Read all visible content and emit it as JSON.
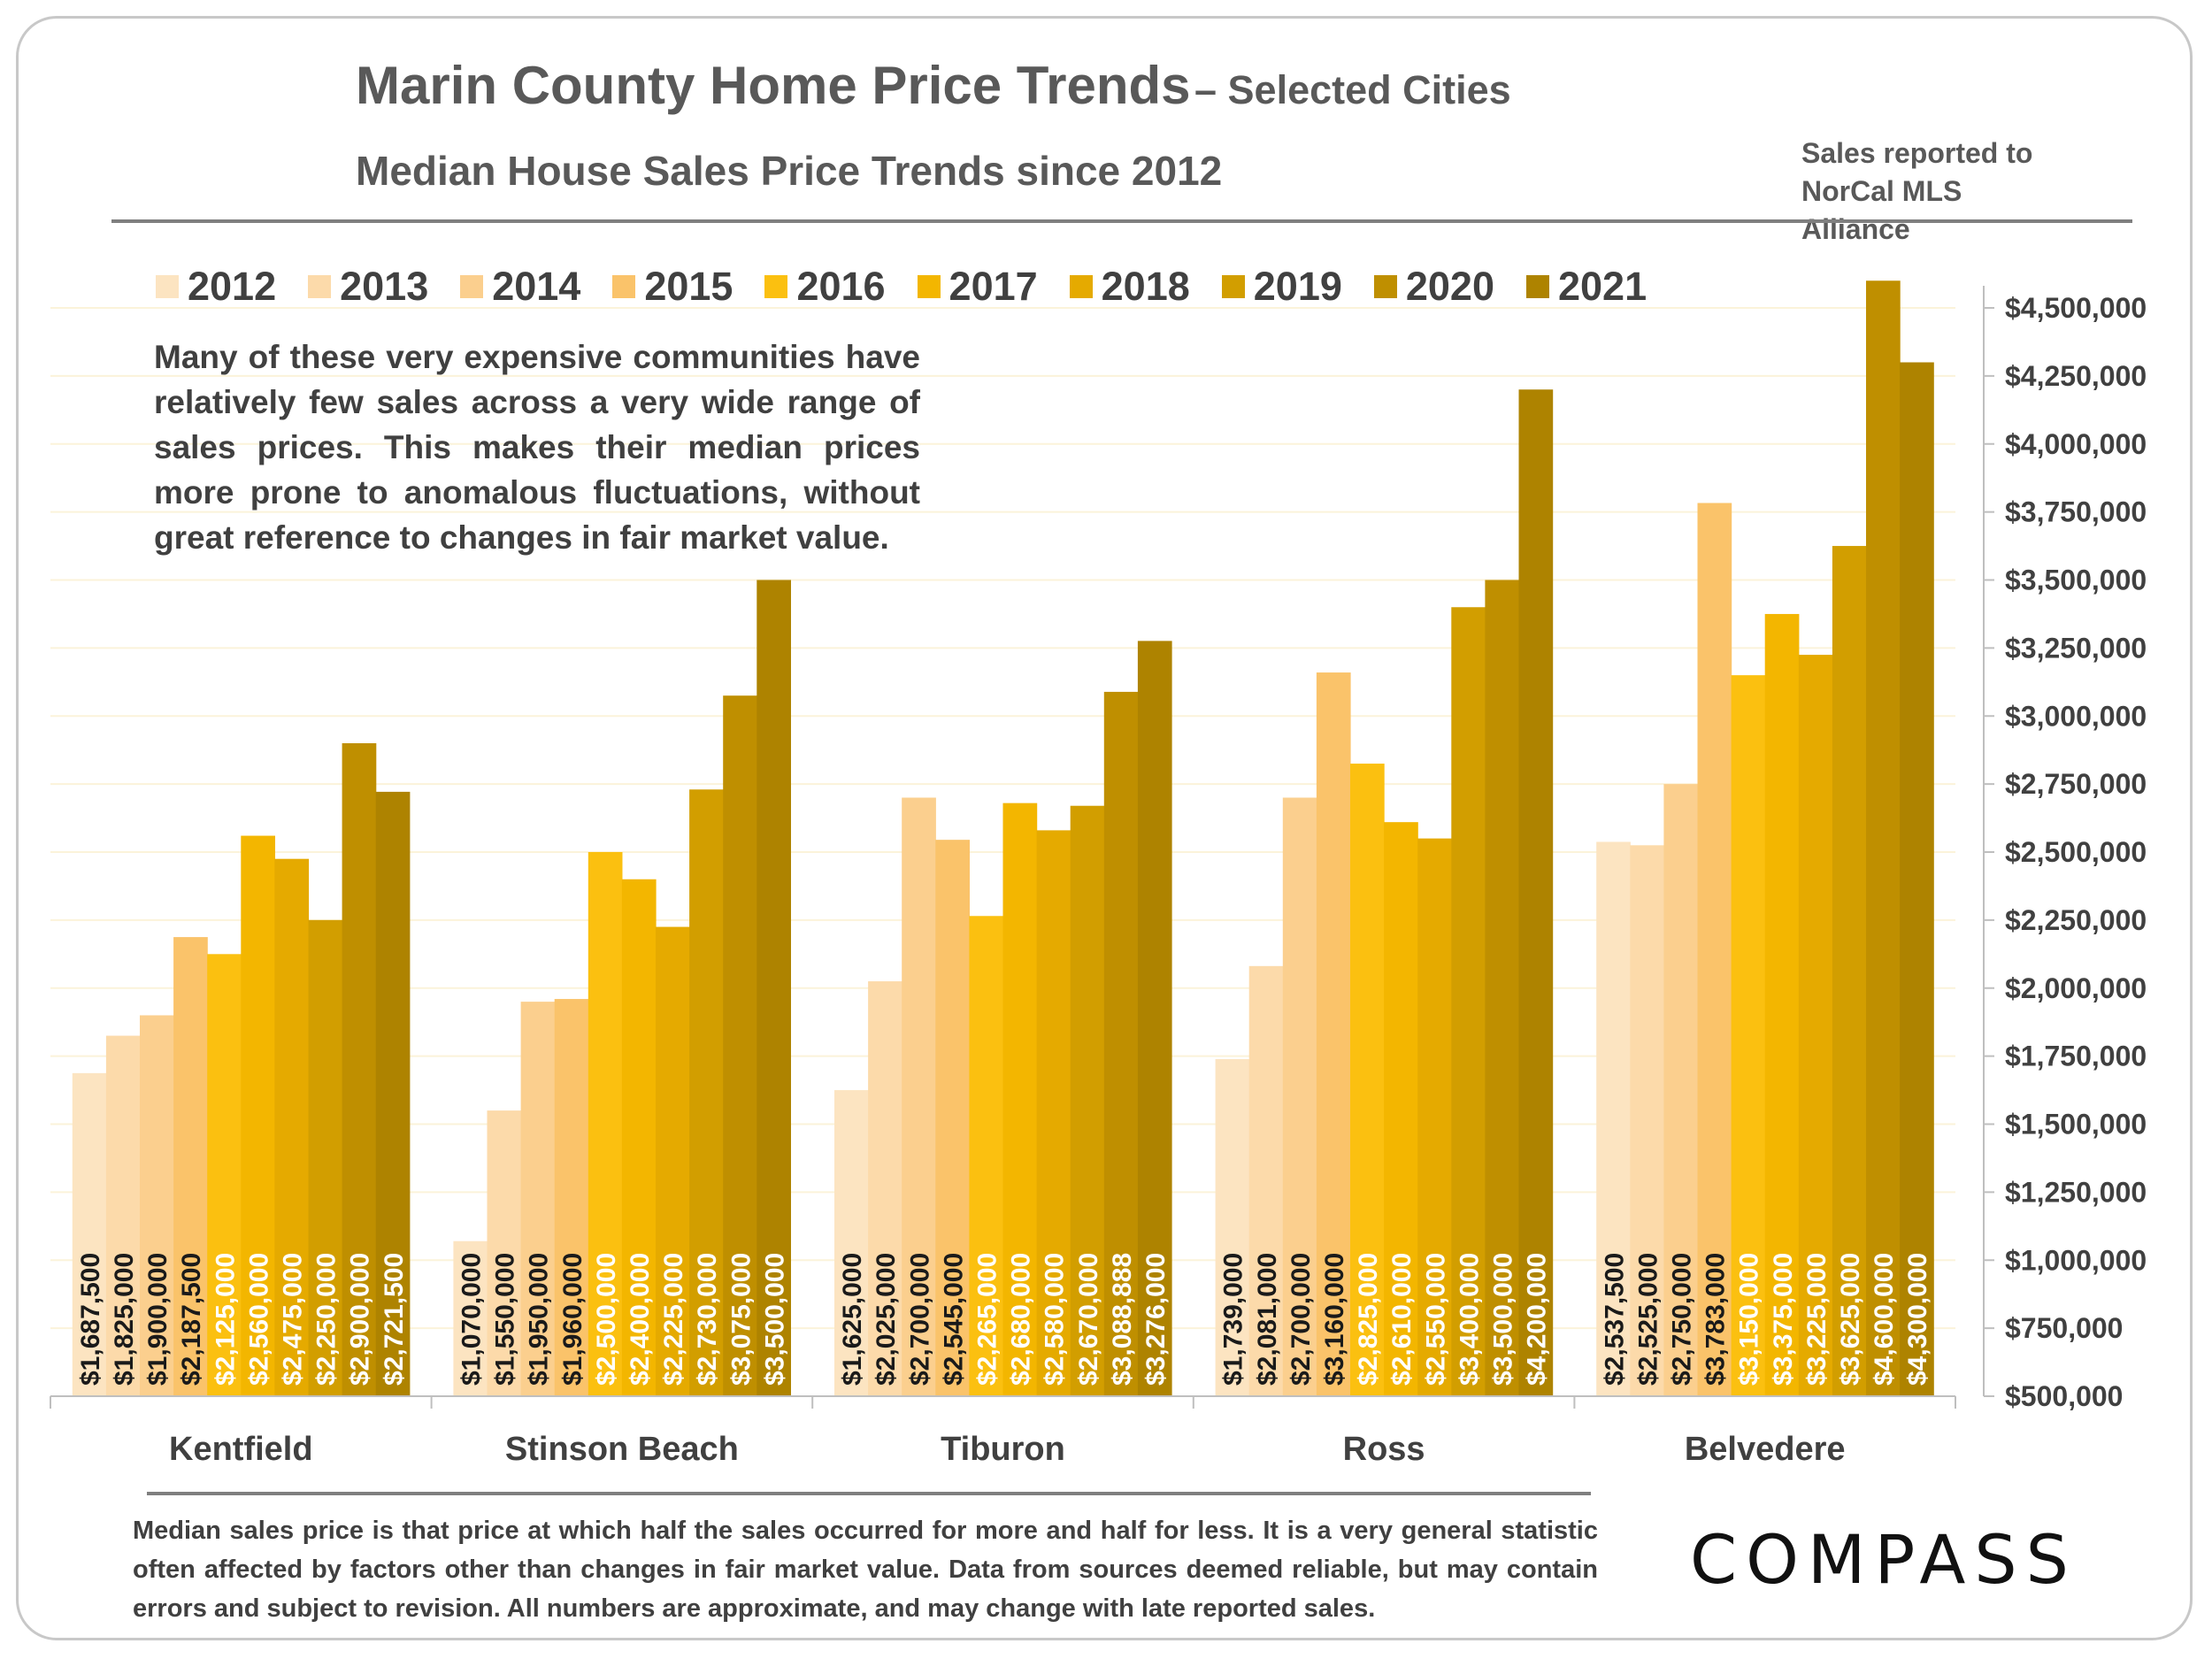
{
  "header": {
    "title": "Marin County Home Price Trends",
    "title_suffix": "– Selected Cities",
    "subtitle": "Median House Sales Price Trends since 2012",
    "source_line1": "Sales reported to",
    "source_line2": "NorCal MLS Alliance"
  },
  "annotation": "Many of these very expensive communities have relatively few sales across a very wide range of sales prices. This makes their median prices more prone to anomalous fluctuations, without great reference to changes in fair market value.",
  "footnote": "Median sales price is that price at which half the sales occurred for more and half for less. It is a very general statistic often affected by factors other than changes in fair market value. Data from sources deemed reliable, but may contain errors and subject to revision. All numbers are approximate, and may change with late reported sales.",
  "logo": "COMPASS",
  "chart_data": {
    "type": "bar",
    "categories": [
      "Kentfield",
      "Stinson Beach",
      "Tiburon",
      "Ross",
      "Belvedere"
    ],
    "series": [
      {
        "name": "2012",
        "color": "#FCE4C1",
        "values": [
          1687500,
          1070000,
          1625000,
          1739000,
          2537500
        ],
        "labels": [
          "$1,687,500",
          "$1,070,000",
          "$1,625,000",
          "$1,739,000",
          "$2,537,500"
        ]
      },
      {
        "name": "2013",
        "color": "#FCDAAA",
        "values": [
          1825000,
          1550000,
          2025000,
          2081000,
          2525000
        ],
        "labels": [
          "$1,825,000",
          "$1,550,000",
          "$2,025,000",
          "$2,081,000",
          "$2,525,000"
        ]
      },
      {
        "name": "2014",
        "color": "#FBCF8E",
        "values": [
          1900000,
          1950000,
          2700000,
          2700000,
          2750000
        ],
        "labels": [
          "$1,900,000",
          "$1,950,000",
          "$2,700,000",
          "$2,700,000",
          "$2,750,000"
        ]
      },
      {
        "name": "2015",
        "color": "#FAC36A",
        "values": [
          2187500,
          1960000,
          2545000,
          3160000,
          3783000
        ],
        "labels": [
          "$2,187,500",
          "$1,960,000",
          "$2,545,000",
          "$3,160,000",
          "$3,783,000"
        ]
      },
      {
        "name": "2016",
        "color": "#FBC010",
        "values": [
          2125000,
          2500000,
          2265000,
          2825000,
          3150000
        ],
        "labels": [
          "$2,125,000",
          "$2,500,000",
          "$2,265,000",
          "$2,825,000",
          "$3,150,000"
        ]
      },
      {
        "name": "2017",
        "color": "#F3B600",
        "values": [
          2560000,
          2400000,
          2680000,
          2610000,
          3375000
        ],
        "labels": [
          "$2,560,000",
          "$2,400,000",
          "$2,680,000",
          "$2,610,000",
          "$3,375,000"
        ]
      },
      {
        "name": "2018",
        "color": "#E5AA00",
        "values": [
          2475000,
          2225000,
          2580000,
          2550000,
          3225000
        ],
        "labels": [
          "$2,475,000",
          "$2,225,000",
          "$2,580,000",
          "$2,550,000",
          "$3,225,000"
        ]
      },
      {
        "name": "2019",
        "color": "#D29E00",
        "values": [
          2250000,
          2730000,
          2670000,
          3400000,
          3625000
        ],
        "labels": [
          "$2,250,000",
          "$2,730,000",
          "$2,670,000",
          "$3,400,000",
          "$3,625,000"
        ]
      },
      {
        "name": "2020",
        "color": "#BF8F00",
        "values": [
          2900000,
          3075000,
          3088888,
          3500000,
          4600000
        ],
        "labels": [
          "$2,900,000",
          "$3,075,000",
          "$3,088,888",
          "$3,500,000",
          "$4,600,000"
        ]
      },
      {
        "name": "2021",
        "color": "#AE8300",
        "values": [
          2721500,
          3500000,
          3276000,
          4200000,
          4300000
        ],
        "labels": [
          "$2,721,500",
          "$3,500,000",
          "$3,276,000",
          "$4,200,000",
          "$4,300,000"
        ]
      }
    ],
    "ylim": [
      500000,
      4500000
    ],
    "y_ticks": [
      500000,
      750000,
      1000000,
      1250000,
      1500000,
      1750000,
      2000000,
      2250000,
      2500000,
      2750000,
      3000000,
      3250000,
      3500000,
      3750000,
      4000000,
      4250000,
      4500000
    ],
    "y_tick_labels": [
      "$500,000",
      "$750,000",
      "$1,000,000",
      "$1,250,000",
      "$1,500,000",
      "$1,750,000",
      "$2,000,000",
      "$2,250,000",
      "$2,500,000",
      "$2,750,000",
      "$3,000,000",
      "$3,250,000",
      "$3,500,000",
      "$3,750,000",
      "$4,000,000",
      "$4,250,000",
      "$4,500,000"
    ],
    "y_axis_side": "right",
    "grid": true,
    "legend_position": "top",
    "dark_label_color": "#1a1a1a",
    "light_label_color": "#ffffff"
  }
}
